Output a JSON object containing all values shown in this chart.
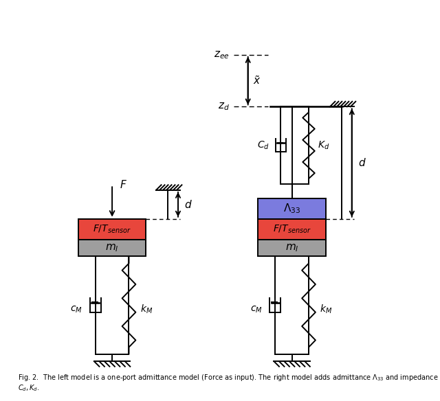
{
  "bg_color": "#ffffff",
  "line_color": "#000000",
  "red_color": "#e8463c",
  "gray_color": "#9e9e9e",
  "blue_color": "#7b7bde",
  "fig_width": 6.4,
  "fig_height": 5.84
}
